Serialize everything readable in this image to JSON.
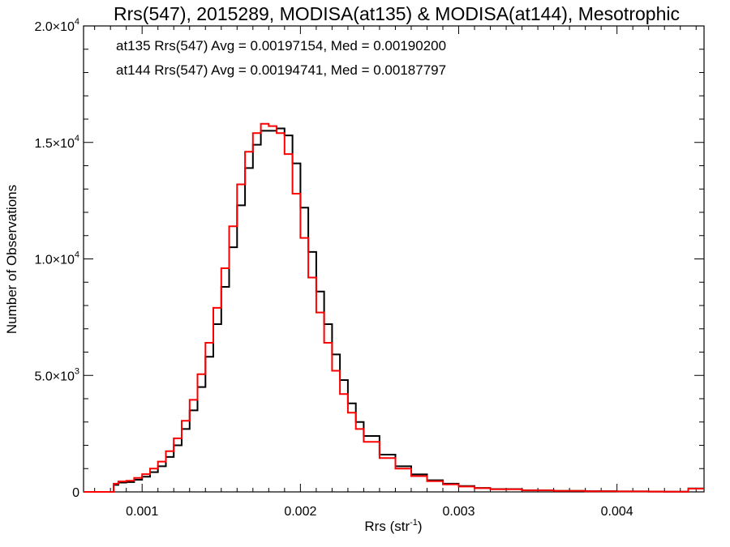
{
  "chart_data": {
    "type": "line",
    "step": true,
    "title": "Rrs(547), 2015289, MODISA(at135) & MODISA(at144), Mesotrophic",
    "xlabel_main": "Rrs (str",
    "xlabel_sup": "-1",
    "xlabel_close": ")",
    "ylabel": "Number of Observations",
    "xlim": [
      0.00063,
      0.00455
    ],
    "ylim": [
      0,
      20000
    ],
    "x_ticks": [
      {
        "value": 0.001,
        "label": "0.001"
      },
      {
        "value": 0.002,
        "label": "0.002"
      },
      {
        "value": 0.003,
        "label": "0.003"
      },
      {
        "value": 0.004,
        "label": "0.004"
      }
    ],
    "y_ticks": [
      {
        "value": 0,
        "mant": "0",
        "exp": ""
      },
      {
        "value": 5000,
        "mant": "5.0×10",
        "exp": "3"
      },
      {
        "value": 10000,
        "mant": "1.0×10",
        "exp": "4"
      },
      {
        "value": 15000,
        "mant": "1.5×10",
        "exp": "4"
      },
      {
        "value": 20000,
        "mant": "2.0×10",
        "exp": "4"
      }
    ],
    "annotations": [
      {
        "text": "at135 Rrs(547) Avg = 0.00197154, Med = 0.00190200",
        "color": "#000000"
      },
      {
        "text": "at144 Rrs(547) Avg = 0.00194741, Med = 0.00187797",
        "color": "#ff0000"
      }
    ],
    "series": [
      {
        "color": "#000000",
        "x": [
          0.00063,
          0.0008,
          0.00082,
          0.00085,
          0.0009,
          0.00095,
          0.001,
          0.00105,
          0.0011,
          0.00115,
          0.0012,
          0.00125,
          0.0013,
          0.00135,
          0.0014,
          0.00145,
          0.0015,
          0.00155,
          0.0016,
          0.00165,
          0.0017,
          0.00175,
          0.0018,
          0.00185,
          0.0019,
          0.00195,
          0.002,
          0.00205,
          0.0021,
          0.00215,
          0.0022,
          0.00225,
          0.0023,
          0.00235,
          0.0024,
          0.0025,
          0.0026,
          0.0027,
          0.0028,
          0.0029,
          0.003,
          0.0031,
          0.0032,
          0.0034,
          0.0036,
          0.0038,
          0.004,
          0.0042,
          0.0043,
          0.00445,
          0.00455
        ],
        "y": [
          0,
          0,
          300,
          400,
          420,
          520,
          650,
          850,
          1100,
          1500,
          2000,
          2700,
          3500,
          4500,
          5800,
          7200,
          8800,
          10500,
          12300,
          13900,
          14900,
          15500,
          15500,
          15600,
          15300,
          14100,
          12200,
          10300,
          8600,
          7200,
          5900,
          4800,
          3800,
          3000,
          2400,
          1600,
          1100,
          750,
          500,
          350,
          250,
          170,
          120,
          70,
          45,
          30,
          22,
          15,
          10,
          150,
          150
        ]
      },
      {
        "color": "#ff0000",
        "x": [
          0.00063,
          0.0008,
          0.00082,
          0.00085,
          0.0009,
          0.00095,
          0.001,
          0.00105,
          0.0011,
          0.00115,
          0.0012,
          0.00125,
          0.0013,
          0.00135,
          0.0014,
          0.00145,
          0.0015,
          0.00155,
          0.0016,
          0.00165,
          0.0017,
          0.00175,
          0.0018,
          0.00185,
          0.0019,
          0.00195,
          0.002,
          0.00205,
          0.0021,
          0.00215,
          0.0022,
          0.00225,
          0.0023,
          0.00235,
          0.0024,
          0.0025,
          0.0026,
          0.0027,
          0.0028,
          0.0029,
          0.003,
          0.0031,
          0.0032,
          0.0034,
          0.0036,
          0.0038,
          0.004,
          0.0042,
          0.0043,
          0.00445,
          0.00455
        ],
        "y": [
          0,
          0,
          350,
          450,
          480,
          600,
          760,
          1000,
          1300,
          1750,
          2300,
          3050,
          3950,
          5050,
          6400,
          7900,
          9600,
          11400,
          13200,
          14600,
          15400,
          15800,
          15700,
          15400,
          14500,
          12800,
          10900,
          9200,
          7700,
          6400,
          5200,
          4200,
          3400,
          2700,
          2150,
          1450,
          1000,
          680,
          460,
          320,
          230,
          160,
          110,
          65,
          42,
          28,
          20,
          14,
          9,
          140,
          140
        ]
      }
    ]
  }
}
